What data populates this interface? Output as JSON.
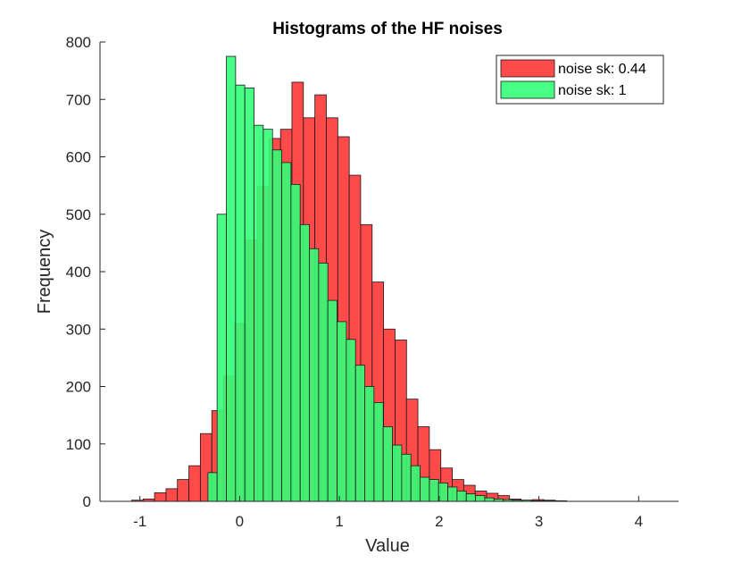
{
  "chart_data": {
    "type": "bar",
    "title": "Histograms of the HF noises",
    "xlabel": "Value",
    "ylabel": "Frequency",
    "xlim": [
      -1.4,
      4.4
    ],
    "ylim": [
      0,
      800
    ],
    "xticks": [
      -1,
      0,
      1,
      2,
      3,
      4
    ],
    "xtick_labels": [
      "-1",
      "0",
      "1",
      "2",
      "3",
      "4"
    ],
    "yticks": [
      0,
      100,
      200,
      300,
      400,
      500,
      600,
      700,
      800
    ],
    "ytick_labels": [
      "0",
      "100",
      "200",
      "300",
      "400",
      "500",
      "600",
      "700",
      "800"
    ],
    "grid": false,
    "legend_position": "top-right",
    "series": [
      {
        "name": "noise sk: 0.44",
        "color": "#ff4040",
        "bin_width": 0.1148,
        "bin_starts": [
          -1.083,
          -0.968,
          -0.853,
          -0.738,
          -0.624,
          -0.509,
          -0.394,
          -0.279,
          -0.164,
          -0.05,
          0.065,
          0.18,
          0.295,
          0.41,
          0.524,
          0.639,
          0.754,
          0.869,
          0.984,
          1.098,
          1.213,
          1.328,
          1.443,
          1.558,
          1.672,
          1.787,
          1.902,
          2.017,
          2.132,
          2.246,
          2.361,
          2.476,
          2.591,
          2.706,
          2.82,
          2.935,
          3.05,
          3.165
        ],
        "values": [
          2,
          4,
          15,
          22,
          38,
          62,
          118,
          158,
          218,
          310,
          455,
          548,
          632,
          648,
          730,
          668,
          708,
          668,
          635,
          568,
          482,
          382,
          300,
          281,
          178,
          130,
          90,
          58,
          38,
          28,
          18,
          14,
          10,
          4,
          2,
          3,
          2,
          1
        ]
      },
      {
        "name": "noise sk: 1",
        "color": "#33ff77",
        "bin_width": 0.0925,
        "bin_starts": [
          -0.318,
          -0.226,
          -0.133,
          -0.041,
          0.052,
          0.144,
          0.237,
          0.329,
          0.422,
          0.514,
          0.607,
          0.699,
          0.792,
          0.884,
          0.977,
          1.069,
          1.162,
          1.254,
          1.347,
          1.439,
          1.532,
          1.624,
          1.717,
          1.809,
          1.902,
          1.994,
          2.087,
          2.179,
          2.272,
          2.364,
          2.457,
          2.549,
          2.642,
          2.734,
          2.827,
          2.919,
          3.012,
          3.104
        ],
        "values": [
          50,
          500,
          775,
          725,
          720,
          655,
          648,
          612,
          590,
          552,
          482,
          440,
          415,
          350,
          313,
          282,
          237,
          200,
          172,
          130,
          98,
          82,
          62,
          42,
          38,
          32,
          25,
          18,
          13,
          10,
          6,
          4,
          3,
          2,
          2,
          1,
          1,
          1
        ]
      }
    ]
  }
}
